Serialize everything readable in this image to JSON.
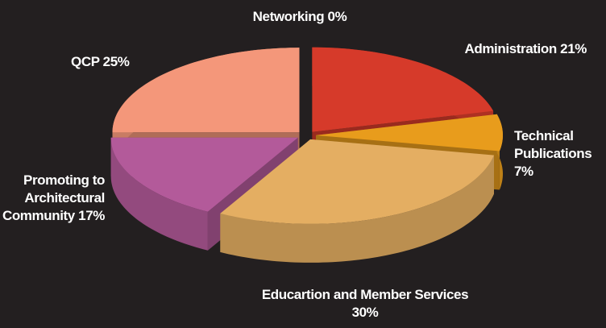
{
  "chart_data": {
    "type": "pie",
    "categories": [
      "Networking",
      "Administration",
      "Technical Publications",
      "Educartion and Member Services",
      "Promoting to Architectural Community",
      "QCP"
    ],
    "values": [
      0,
      21,
      7,
      30,
      17,
      25
    ],
    "value_labels": [
      "0%",
      "21%",
      "7%",
      "30%",
      "17%",
      "25%"
    ],
    "colors": [
      "#7f7f7f",
      "#d63a2a",
      "#e89c1c",
      "#e4ae62",
      "#b35a9a",
      "#f4977a"
    ]
  }
}
